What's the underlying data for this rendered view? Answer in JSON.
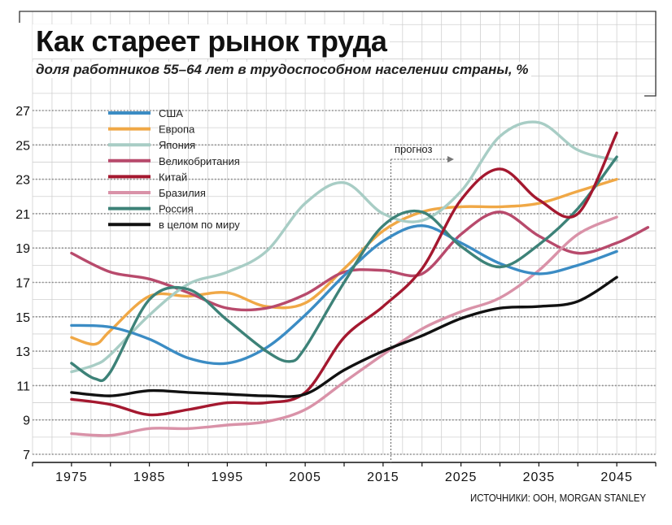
{
  "title": "Как стареет рынок труда",
  "subtitle": "доля работников 55–64 лет в трудоспособном населении страны, %",
  "source": "ИСТОЧНИКИ: OOH, MORGAN STANLEY",
  "forecast_label": "прогноз",
  "chart_data": {
    "type": "line",
    "title": "Как стареет рынок труда",
    "subtitle": "доля работников 55–64 лет в трудоспособном населении страны, %",
    "xlabel": "",
    "ylabel": "",
    "xlim": [
      1970,
      2050
    ],
    "ylim": [
      7,
      27
    ],
    "x_ticks": [
      "1975",
      "1985",
      "1995",
      "2005",
      "2015",
      "2025",
      "2035",
      "2045"
    ],
    "y_ticks": [
      "7",
      "9",
      "11",
      "13",
      "15",
      "17",
      "19",
      "21",
      "23",
      "25",
      "27"
    ],
    "grid": true,
    "legend_position": "top-left",
    "forecast_start": 2016,
    "series": [
      {
        "name": "США",
        "color": "#3b8cc4",
        "x": [
          1975,
          1980,
          1985,
          1990,
          1995,
          2000,
          2005,
          2010,
          2015,
          2020,
          2025,
          2030,
          2035,
          2040,
          2045
        ],
        "values": [
          14.5,
          14.4,
          13.7,
          12.6,
          12.3,
          13.2,
          15.1,
          17.4,
          19.4,
          20.3,
          19.3,
          18.1,
          17.5,
          18.0,
          18.8
        ]
      },
      {
        "name": "Европа",
        "color": "#f0a846",
        "x": [
          1975,
          1978,
          1980,
          1985,
          1990,
          1995,
          2000,
          2005,
          2010,
          2015,
          2020,
          2025,
          2030,
          2035,
          2040,
          2045
        ],
        "values": [
          13.8,
          13.4,
          14.2,
          16.2,
          16.2,
          16.4,
          15.6,
          15.8,
          17.8,
          20.0,
          21.1,
          21.4,
          21.4,
          21.6,
          22.3,
          23.0
        ]
      },
      {
        "name": "Япония",
        "color": "#a8cdc5",
        "x": [
          1975,
          1978,
          1980,
          1985,
          1990,
          1995,
          2000,
          2005,
          2010,
          2015,
          2020,
          2025,
          2030,
          2035,
          2040,
          2045
        ],
        "values": [
          11.8,
          12.2,
          12.8,
          15.1,
          16.9,
          17.6,
          18.8,
          21.6,
          22.8,
          21.0,
          20.6,
          22.3,
          25.5,
          26.3,
          24.7,
          24.1
        ]
      },
      {
        "name": "Великобритания",
        "color": "#b84a6c",
        "x": [
          1975,
          1980,
          1985,
          1990,
          1995,
          2000,
          2005,
          2010,
          2015,
          2020,
          2025,
          2030,
          2035,
          2040,
          2045,
          2049
        ],
        "values": [
          18.7,
          17.6,
          17.2,
          16.4,
          15.5,
          15.5,
          16.3,
          17.6,
          17.7,
          17.5,
          19.8,
          21.1,
          19.7,
          18.7,
          19.3,
          20.2
        ]
      },
      {
        "name": "Китай",
        "color": "#a4182f",
        "x": [
          1975,
          1980,
          1985,
          1990,
          1995,
          2000,
          2005,
          2010,
          2015,
          2020,
          2025,
          2030,
          2035,
          2040,
          2045
        ],
        "values": [
          10.2,
          9.9,
          9.3,
          9.6,
          10.0,
          10.0,
          10.6,
          13.8,
          15.6,
          17.8,
          21.8,
          23.6,
          21.8,
          21.0,
          25.7
        ]
      },
      {
        "name": "Бразилия",
        "color": "#d992a8",
        "x": [
          1975,
          1980,
          1985,
          1990,
          1995,
          2000,
          2005,
          2010,
          2015,
          2020,
          2025,
          2030,
          2035,
          2040,
          2045
        ],
        "values": [
          8.2,
          8.1,
          8.5,
          8.5,
          8.7,
          8.9,
          9.6,
          11.2,
          12.8,
          14.3,
          15.3,
          16.1,
          17.7,
          19.8,
          20.8
        ]
      },
      {
        "name": "Россия",
        "color": "#3d8278",
        "x": [
          1975,
          1978,
          1980,
          1985,
          1990,
          1995,
          2000,
          2003,
          2005,
          2010,
          2015,
          2020,
          2025,
          2030,
          2035,
          2040,
          2045
        ],
        "values": [
          12.3,
          11.4,
          11.8,
          16.0,
          16.6,
          14.8,
          13.0,
          12.4,
          13.2,
          17.0,
          20.3,
          21.1,
          19.1,
          17.9,
          19.2,
          21.3,
          24.3
        ]
      },
      {
        "name": "в целом по миру",
        "color": "#111111",
        "x": [
          1975,
          1980,
          1985,
          1990,
          1995,
          2000,
          2005,
          2010,
          2015,
          2020,
          2025,
          2030,
          2035,
          2040,
          2045
        ],
        "values": [
          10.6,
          10.4,
          10.7,
          10.6,
          10.5,
          10.4,
          10.5,
          11.9,
          13.0,
          13.9,
          14.9,
          15.5,
          15.6,
          15.9,
          17.3
        ]
      }
    ]
  }
}
